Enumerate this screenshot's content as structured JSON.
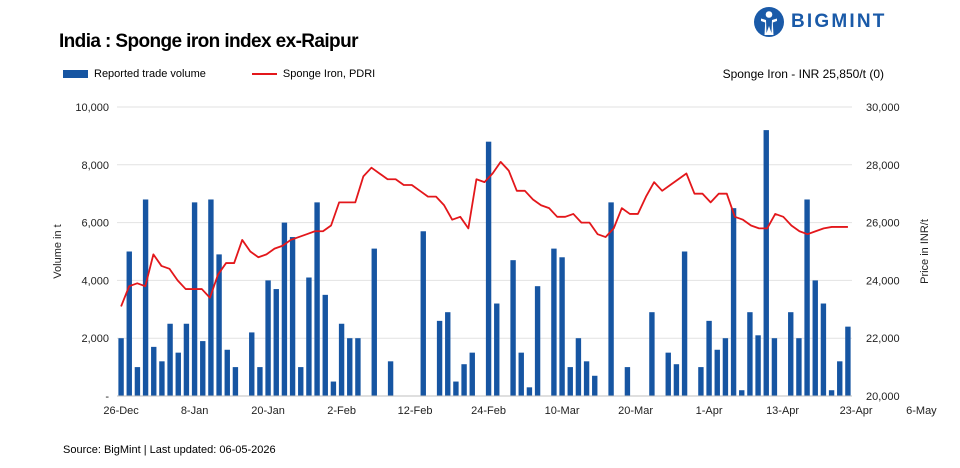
{
  "brand": {
    "name": "BIGMINT",
    "icon": "person-logo-icon",
    "color": "#1a5aa8"
  },
  "source_text": "Source: BigMint | Last updated: 06-05-2026",
  "chart_data": {
    "type": "bar+line",
    "title": "India : Sponge iron index ex-Raipur",
    "price_note": "Sponge Iron - INR 25,850/t (0)",
    "legend": [
      {
        "label": "Reported trade volume",
        "kind": "bar",
        "color": "#1655a2"
      },
      {
        "label": "Sponge Iron, PDRI",
        "kind": "line",
        "color": "#e3171b"
      }
    ],
    "x_tick_labels": [
      "26-Dec",
      "8-Jan",
      "20-Jan",
      "2-Feb",
      "12-Feb",
      "24-Feb",
      "10-Mar",
      "20-Mar",
      "1-Apr",
      "13-Apr",
      "23-Apr",
      "6-May"
    ],
    "x_tick_index": [
      0,
      9,
      18,
      27,
      36,
      45,
      54,
      63,
      72,
      81,
      90,
      98
    ],
    "y_left": {
      "label": "Volume in t",
      "ylim": [
        0,
        10000
      ],
      "ticks": [
        "-",
        "2,000",
        "4,000",
        "6,000",
        "8,000",
        "10,000"
      ],
      "tick_values": [
        0,
        2000,
        4000,
        6000,
        8000,
        10000
      ]
    },
    "y_right": {
      "label": "Price in INR/t",
      "ylim": [
        20000,
        30000
      ],
      "ticks": [
        "20,000",
        "22,000",
        "24,000",
        "26,000",
        "28,000",
        "30,000"
      ],
      "tick_values": [
        20000,
        22000,
        24000,
        26000,
        28000,
        30000
      ]
    },
    "grid": "horizontal",
    "series": [
      {
        "name": "Reported trade volume",
        "type": "bar",
        "axis": "left",
        "values": [
          2000,
          5000,
          1000,
          6800,
          1700,
          1200,
          2500,
          1500,
          2500,
          6700,
          1900,
          6800,
          4900,
          1600,
          1000,
          0,
          2200,
          1000,
          4000,
          3700,
          6000,
          5500,
          1000,
          4100,
          6700,
          3500,
          500,
          2500,
          2000,
          2000,
          0,
          5100,
          0,
          1200,
          0,
          0,
          0,
          5700,
          0,
          2600,
          2900,
          500,
          1100,
          1500,
          0,
          8800,
          3200,
          0,
          4700,
          1500,
          300,
          3800,
          0,
          5100,
          4800,
          1000,
          2000,
          1200,
          700,
          0,
          6700,
          0,
          1000,
          0,
          0,
          2900,
          0,
          1500,
          1100,
          5000,
          0,
          1000,
          2600,
          1600,
          2000,
          6500,
          200,
          2900,
          2100,
          9200,
          2000,
          0,
          2900,
          2000,
          6800,
          4000,
          3200,
          200,
          1200,
          2400
        ]
      },
      {
        "name": "Sponge Iron, PDRI",
        "type": "line",
        "axis": "right",
        "values": [
          23100,
          23800,
          23900,
          23800,
          24900,
          24500,
          24400,
          24000,
          23700,
          23700,
          23700,
          23400,
          24200,
          24600,
          24600,
          25400,
          25000,
          24800,
          24900,
          25100,
          25200,
          25400,
          25500,
          25600,
          25700,
          25700,
          25900,
          26700,
          26700,
          26700,
          27600,
          27900,
          27700,
          27500,
          27500,
          27300,
          27300,
          27100,
          26900,
          26900,
          26600,
          26100,
          26200,
          25800,
          27500,
          27400,
          27700,
          28100,
          27800,
          27100,
          27100,
          26800,
          26600,
          26500,
          26200,
          26200,
          26300,
          26000,
          26000,
          25600,
          25500,
          25800,
          26500,
          26300,
          26300,
          26900,
          27400,
          27100,
          27300,
          27500,
          27700,
          27000,
          27000,
          26700,
          27000,
          27000,
          26200,
          26100,
          25900,
          25800,
          25800,
          26300,
          26200,
          25900,
          25700,
          25600,
          25700,
          25800,
          25850,
          25850,
          25850
        ]
      }
    ]
  }
}
